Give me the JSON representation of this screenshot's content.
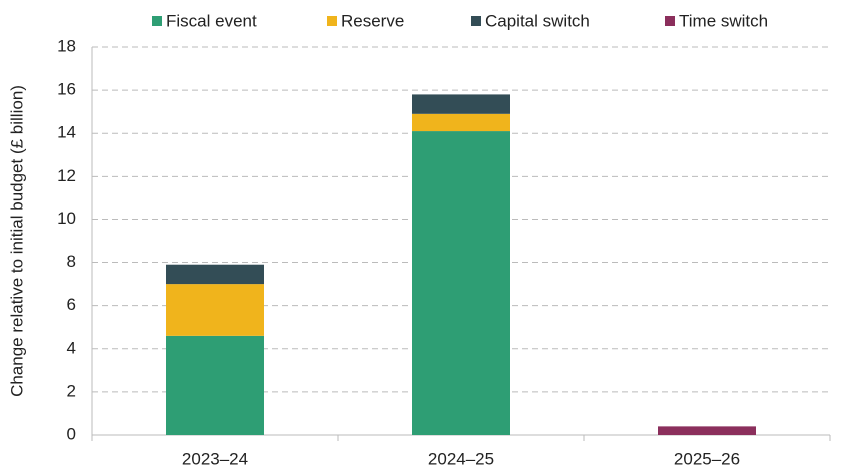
{
  "chart_data": {
    "type": "stacked_bar",
    "categories": [
      "2023–24",
      "2024–25",
      "2025–26"
    ],
    "y_label": "Change relative to initial budget (£ billion)",
    "series": [
      {
        "name": "Fiscal event",
        "color": "#2e9e74",
        "values": [
          4.6,
          14.1,
          0
        ]
      },
      {
        "name": "Reserve",
        "color": "#f0b41c",
        "values": [
          2.4,
          0.8,
          0
        ]
      },
      {
        "name": "Capital switch",
        "color": "#334d56",
        "values": [
          0.9,
          0.9,
          0
        ]
      },
      {
        "name": "Time switch",
        "color": "#8b2f5c",
        "values": [
          0,
          0,
          0.4
        ]
      }
    ],
    "ylim": [
      0,
      18
    ],
    "yticks": [
      0,
      2,
      4,
      6,
      8,
      10,
      12,
      14,
      16,
      18
    ],
    "grid": true
  }
}
